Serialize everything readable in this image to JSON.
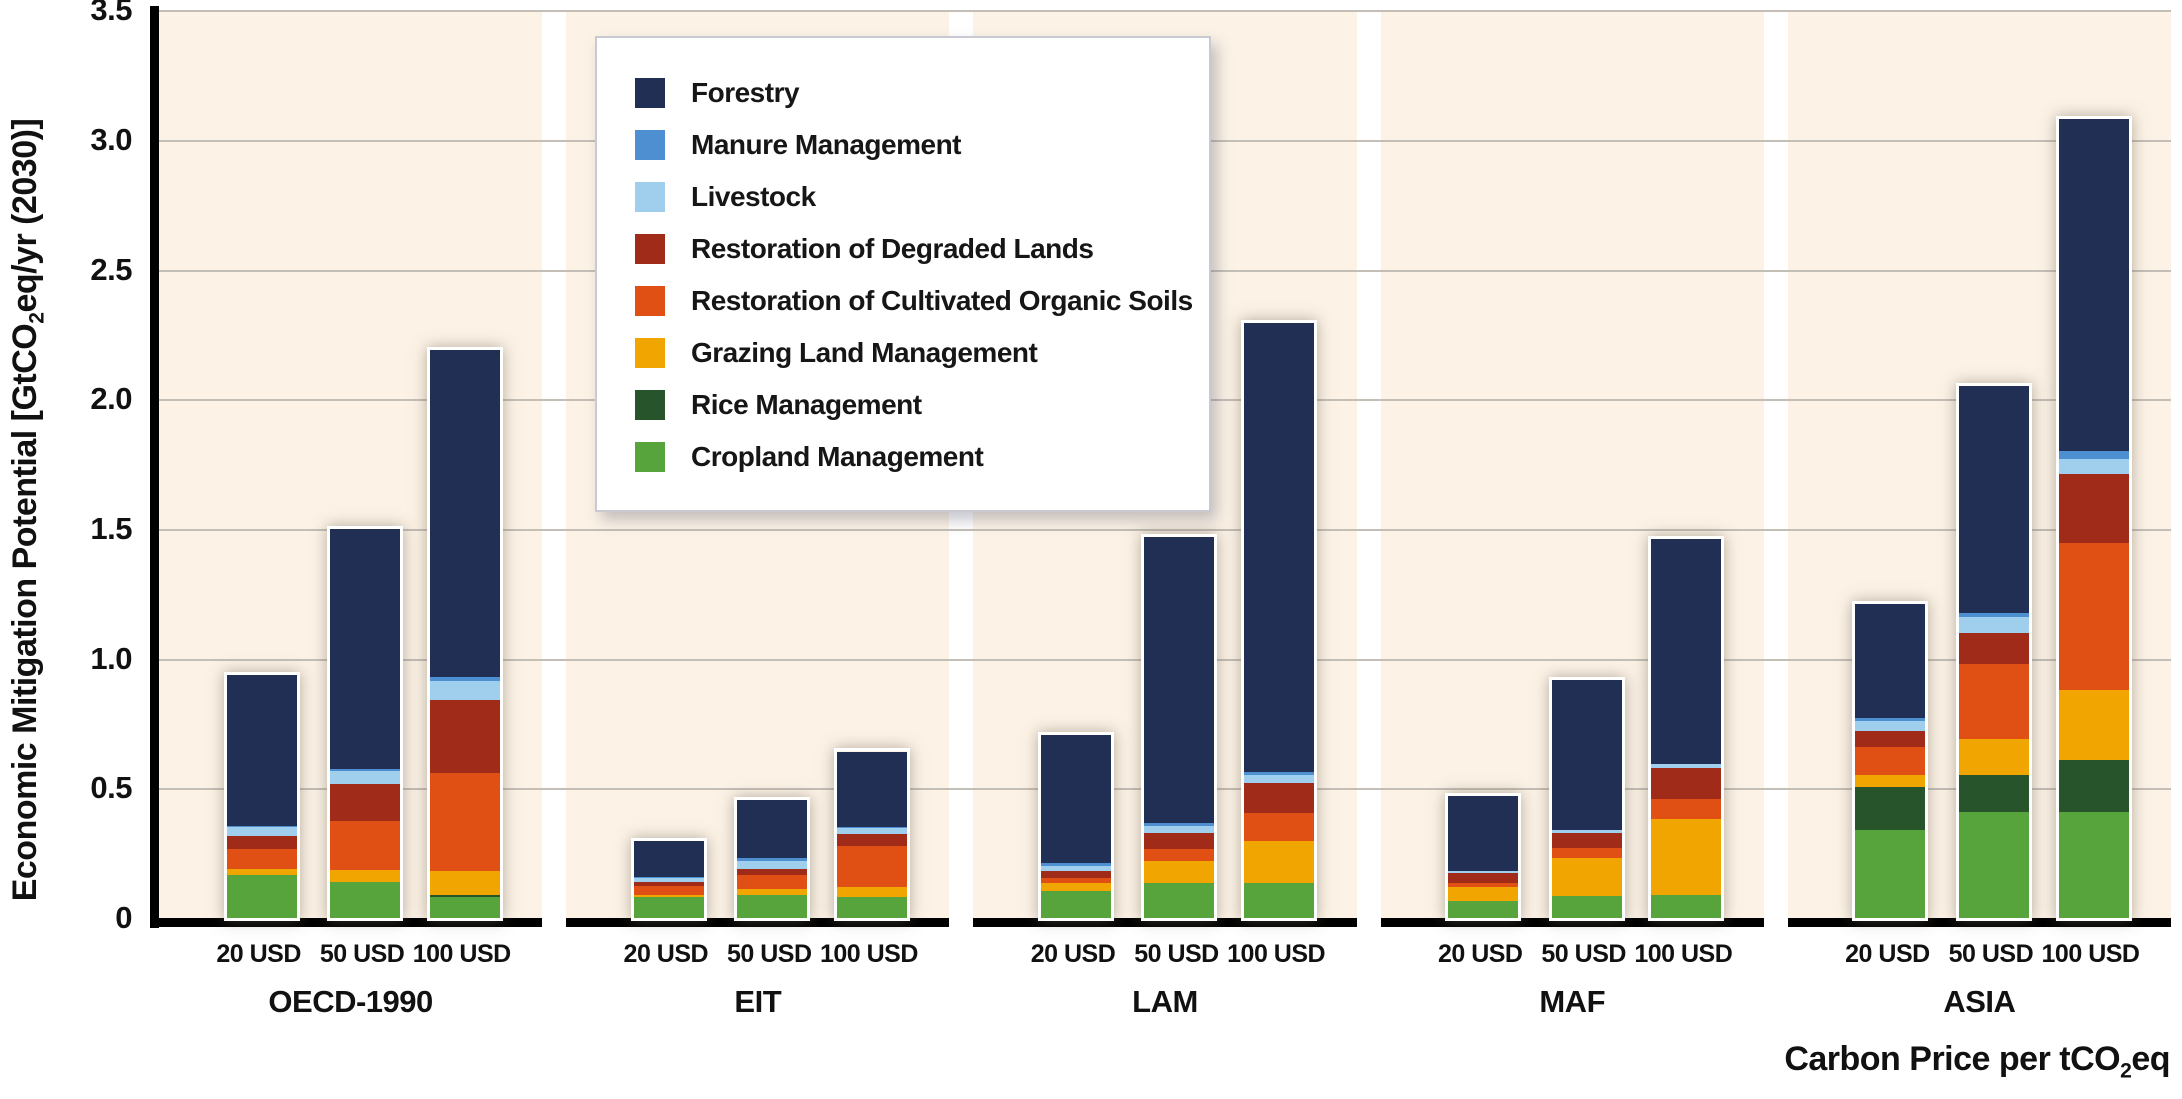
{
  "chart_data": {
    "type": "bar",
    "stacked": true,
    "title": "",
    "ylabel": "Economic Mitigation Potential [GtCO2eq/yr (2030)]",
    "xlabel": "Carbon Price per tCO2eq",
    "ylim": [
      0,
      3.5
    ],
    "ytick_step": 0.5,
    "yticks": [
      "0",
      "0.5",
      "1.0",
      "1.5",
      "2.0",
      "2.5",
      "3.0",
      "3.5"
    ],
    "grid": true,
    "legend_position": "upper-left-overlay",
    "categories_regions": [
      "OECD-1990",
      "EIT",
      "LAM",
      "MAF",
      "ASIA"
    ],
    "price_labels": [
      "20 USD",
      "50 USD",
      "100 USD"
    ],
    "panel_background": "#fcf3e6",
    "legend_order_top_to_bottom": [
      "Forestry",
      "Manure Management",
      "Livestock",
      "Restoration of Degraded Lands",
      "Restoration of Cultivated Organic Soils",
      "Grazing Land Management",
      "Rice Management",
      "Cropland Management"
    ],
    "series_bottom_to_top": [
      {
        "name": "Cropland Management",
        "color": "#58a43c",
        "values": {
          "OECD-1990": [
            0.165,
            0.14,
            0.08
          ],
          "EIT": [
            0.08,
            0.09,
            0.08
          ],
          "LAM": [
            0.105,
            0.135,
            0.135
          ],
          "MAF": [
            0.065,
            0.085,
            0.09
          ],
          "ASIA": [
            0.34,
            0.41,
            0.41
          ]
        }
      },
      {
        "name": "Rice Management",
        "color": "#27542a",
        "values": {
          "OECD-1990": [
            0.0,
            0.0,
            0.01
          ],
          "EIT": [
            0.0,
            0.0,
            0.0
          ],
          "LAM": [
            0.0,
            0.0,
            0.0
          ],
          "MAF": [
            0.0,
            0.0,
            0.0
          ],
          "ASIA": [
            0.165,
            0.14,
            0.2
          ]
        }
      },
      {
        "name": "Grazing Land Management",
        "color": "#f0a500",
        "values": {
          "OECD-1990": [
            0.025,
            0.045,
            0.09
          ],
          "EIT": [
            0.008,
            0.02,
            0.038
          ],
          "LAM": [
            0.03,
            0.085,
            0.16
          ],
          "MAF": [
            0.055,
            0.145,
            0.29
          ],
          "ASIA": [
            0.045,
            0.14,
            0.27
          ]
        }
      },
      {
        "name": "Restoration of Cultivated Organic Soils",
        "color": "#e04f13",
        "values": {
          "OECD-1990": [
            0.075,
            0.19,
            0.38
          ],
          "EIT": [
            0.035,
            0.057,
            0.16
          ],
          "LAM": [
            0.02,
            0.046,
            0.11
          ],
          "MAF": [
            0.015,
            0.038,
            0.08
          ],
          "ASIA": [
            0.11,
            0.29,
            0.565
          ]
        }
      },
      {
        "name": "Restoration of Degraded Lands",
        "color": "#a02b18",
        "values": {
          "OECD-1990": [
            0.05,
            0.14,
            0.28
          ],
          "EIT": [
            0.015,
            0.023,
            0.046
          ],
          "LAM": [
            0.027,
            0.062,
            0.115
          ],
          "MAF": [
            0.04,
            0.058,
            0.12
          ],
          "ASIA": [
            0.06,
            0.12,
            0.265
          ]
        }
      },
      {
        "name": "Livestock",
        "color": "#9fcfec",
        "values": {
          "OECD-1990": [
            0.035,
            0.05,
            0.075
          ],
          "EIT": [
            0.015,
            0.028,
            0.023
          ],
          "LAM": [
            0.02,
            0.027,
            0.03
          ],
          "MAF": [
            0.005,
            0.012,
            0.012
          ],
          "ASIA": [
            0.04,
            0.06,
            0.06
          ]
        }
      },
      {
        "name": "Manure Management",
        "color": "#4d8fd1",
        "values": {
          "OECD-1990": [
            0.005,
            0.01,
            0.015
          ],
          "EIT": [
            0.004,
            0.012,
            0.005
          ],
          "LAM": [
            0.01,
            0.012,
            0.012
          ],
          "MAF": [
            0.0,
            0.0,
            0.0
          ],
          "ASIA": [
            0.01,
            0.015,
            0.03
          ]
        }
      },
      {
        "name": "Forestry",
        "color": "#222f55",
        "values": {
          "OECD-1990": [
            0.58,
            0.925,
            1.26
          ],
          "EIT": [
            0.14,
            0.225,
            0.29
          ],
          "LAM": [
            0.495,
            1.1,
            1.73
          ],
          "MAF": [
            0.29,
            0.58,
            0.87
          ],
          "ASIA": [
            0.44,
            0.875,
            1.28
          ]
        }
      }
    ],
    "bar_totals": {
      "OECD-1990": [
        0.935,
        1.5,
        2.19
      ],
      "EIT": [
        0.3,
        0.46,
        0.64
      ],
      "LAM": [
        0.71,
        1.47,
        2.29
      ],
      "MAF": [
        0.47,
        0.92,
        1.46
      ],
      "ASIA": [
        1.21,
        2.05,
        3.08
      ]
    }
  },
  "axes": {
    "y_title_pre": "Economic Mitigation Potential [GtCO",
    "y_title_sub": "2",
    "y_title_post": "eq/yr (2030)]",
    "x_title_pre": "Carbon Price per tCO",
    "x_title_sub": "2",
    "x_title_post": "eq"
  },
  "colors": {
    "panel_background": "#fcf3e6",
    "gridline": "#c3beb6",
    "axis": "#000000",
    "forestry": "#222f55",
    "manure": "#4d8fd1",
    "livestock": "#9fcfec",
    "degraded_lands": "#a02b18",
    "organic_soils": "#e04f13",
    "grazing": "#f0a500",
    "rice": "#27542a",
    "cropland": "#58a43c"
  }
}
